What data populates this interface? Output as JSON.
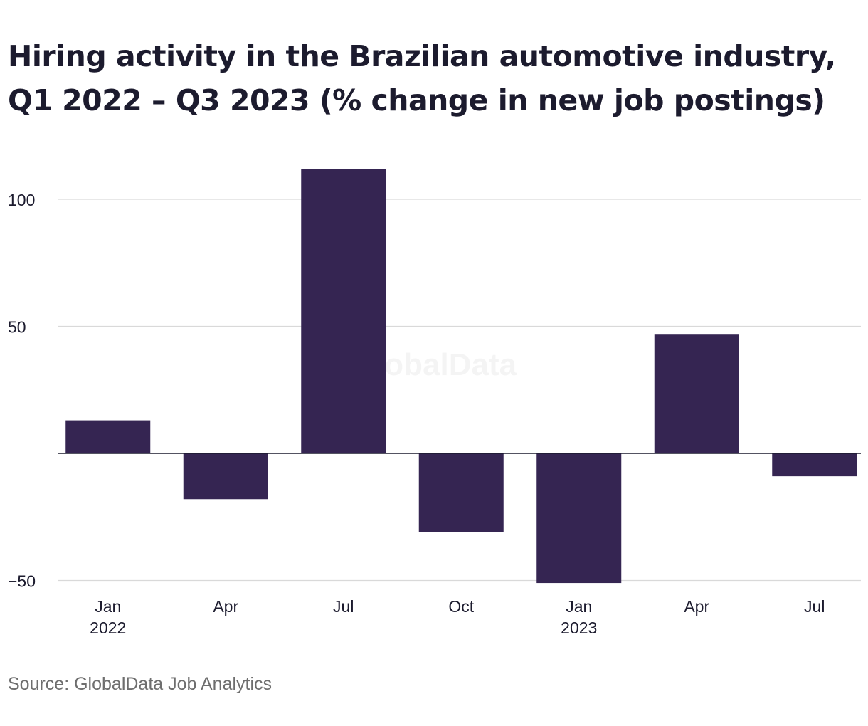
{
  "title_lines": [
    "Hiring activity in the Brazilian automotive industry,",
    "Q1 2022 – Q3 2023 (% change in new job postings)"
  ],
  "source": "Source: GlobalData Job Analytics",
  "watermark": "GlobalData",
  "colors": {
    "bar": "#352552",
    "grid": "#d9d9d9",
    "baseline": "#1c1b2e",
    "text": "#1c1b2e",
    "muted": "#6e6e6e"
  },
  "chart_data": {
    "type": "bar",
    "categories": [
      "Q1 2022",
      "Q2 2022",
      "Q3 2022",
      "Q4 2022",
      "Q1 2023",
      "Q2 2023",
      "Q3 2023"
    ],
    "tick_labels": [
      {
        "line1": "Jan",
        "line2": "2022"
      },
      {
        "line1": "Apr",
        "line2": ""
      },
      {
        "line1": "Jul",
        "line2": ""
      },
      {
        "line1": "Oct",
        "line2": ""
      },
      {
        "line1": "Jan",
        "line2": "2023"
      },
      {
        "line1": "Apr",
        "line2": ""
      },
      {
        "line1": "Jul",
        "line2": ""
      }
    ],
    "values": [
      13,
      -18,
      112,
      -31,
      -51,
      47,
      -9
    ],
    "ylim": [
      -50,
      120
    ],
    "yticks": [
      -50,
      50,
      100
    ],
    "ytick_labels": [
      "−50",
      "50",
      "100"
    ],
    "grid": true,
    "legend": "none"
  }
}
